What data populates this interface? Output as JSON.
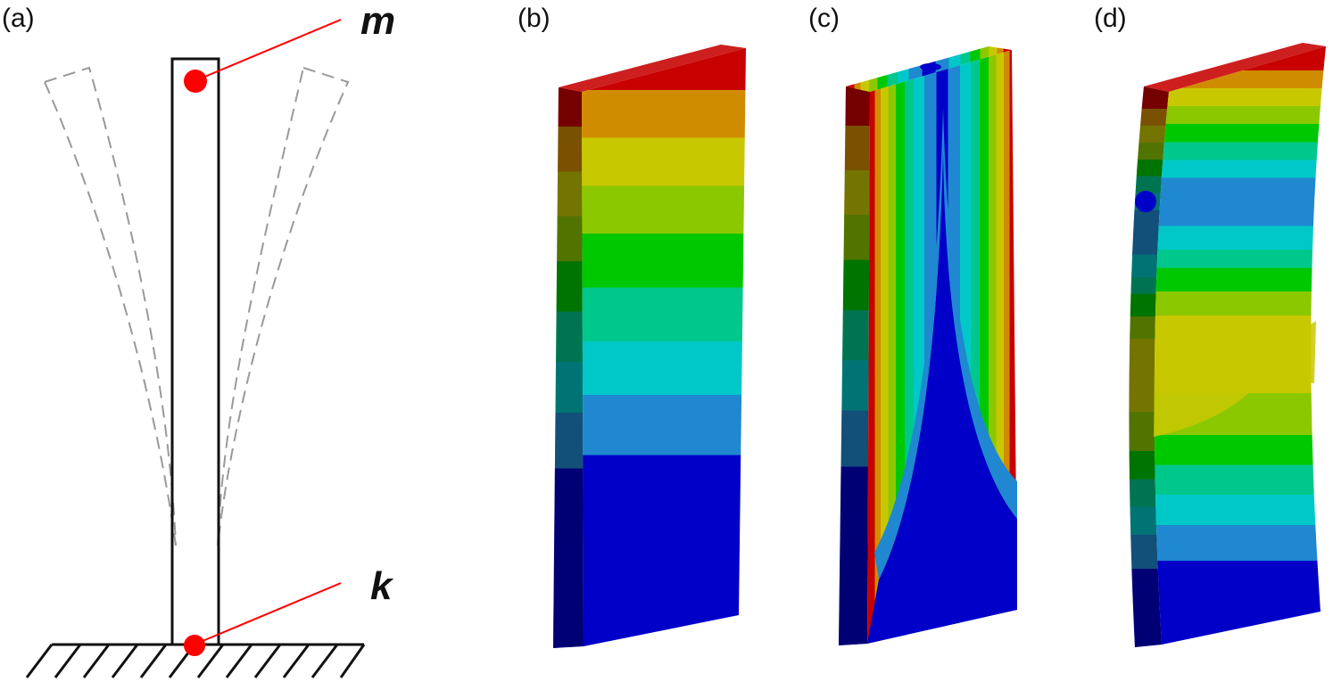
{
  "panels": [
    {
      "label": "(a)"
    },
    {
      "label": "(b)"
    },
    {
      "label": "(c)"
    },
    {
      "label": "(d)"
    }
  ],
  "model": {
    "mass_label": "m",
    "spring_label": "k",
    "marker_color": "#ff0000",
    "beam_color": "#111111",
    "deflected_color": "#999999"
  },
  "contour_palette": [
    "#0000c8",
    "#1f88d0",
    "#00c8c8",
    "#00c88c",
    "#00c800",
    "#8cc800",
    "#c8c800",
    "#d08c00",
    "#c80000"
  ],
  "icons": [
    "clamped-base-hatch-icon",
    "mass-point-icon",
    "spring-point-icon"
  ]
}
